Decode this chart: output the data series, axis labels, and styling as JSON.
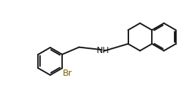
{
  "bg_color": "#ffffff",
  "bond_color": "#1a1a1a",
  "label_color_NH": "#1a1a1a",
  "label_color_Br": "#7a5c00",
  "line_width": 1.5,
  "font_size_label": 8,
  "ring_r": 0.22
}
